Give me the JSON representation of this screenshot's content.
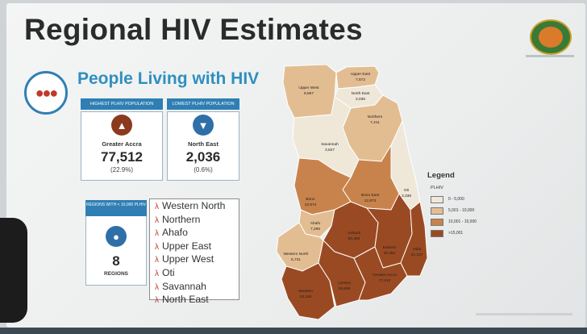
{
  "title": "Regional HIV Estimates",
  "subtitle": "People Living with HIV",
  "cards": {
    "highest": {
      "header": "HIGHEST PLHIV POPULATION",
      "region": "Greater Accra",
      "value": "77,512",
      "percent": "(22.9%)",
      "icon": "bar-chart-icon"
    },
    "lowest": {
      "header": "LOWEST PLHIV POPULATION",
      "region": "North East",
      "value": "2,036",
      "percent": "(0.6%)",
      "icon": "bar-chart-icon"
    }
  },
  "regions_box": {
    "header": "REGIONS WITH < 10,000 PLHIV",
    "count": "8",
    "label": "REGIONS",
    "icon": "people-group-icon",
    "list": [
      "Western North",
      "Northern",
      "Ahafo",
      "Upper East",
      "Upper West",
      "Oti",
      "Savannah",
      "North East"
    ]
  },
  "map": {
    "regions": [
      {
        "name": "Upper West",
        "value": "8,567"
      },
      {
        "name": "Upper East",
        "value": "7,572"
      },
      {
        "name": "North East",
        "value": "2,036"
      },
      {
        "name": "Northern",
        "value": "7,411"
      },
      {
        "name": "Savannah",
        "value": "3,627"
      },
      {
        "name": "Bono",
        "value": "10,574"
      },
      {
        "name": "Bono East",
        "value": "12,873"
      },
      {
        "name": "Oti",
        "value": "3,336"
      },
      {
        "name": "Ahafo",
        "value": "7,295"
      },
      {
        "name": "Ashanti",
        "value": "56,363"
      },
      {
        "name": "Eastern",
        "value": "40,394"
      },
      {
        "name": "Volta",
        "value": "21,107"
      },
      {
        "name": "Western North",
        "value": "5,731"
      },
      {
        "name": "Western",
        "value": "23,346"
      },
      {
        "name": "Central",
        "value": "26,806"
      },
      {
        "name": "Greater Accra",
        "value": "77,512"
      }
    ]
  },
  "legend": {
    "title": "Legend",
    "subtitle": "PLHIV",
    "items": [
      {
        "label": "0 - 5,000",
        "color": "#efe7d8"
      },
      {
        "label": "5,001 - 10,000",
        "color": "#e3bd92"
      },
      {
        "label": "10,001 - 15,000",
        "color": "#c8834c"
      },
      {
        "label": ">15,001",
        "color": "#9a4a22"
      }
    ]
  },
  "colors": {
    "accent": "#2f7fb4",
    "subtitle": "#2f8fbf",
    "title": "#2b2b2b"
  }
}
